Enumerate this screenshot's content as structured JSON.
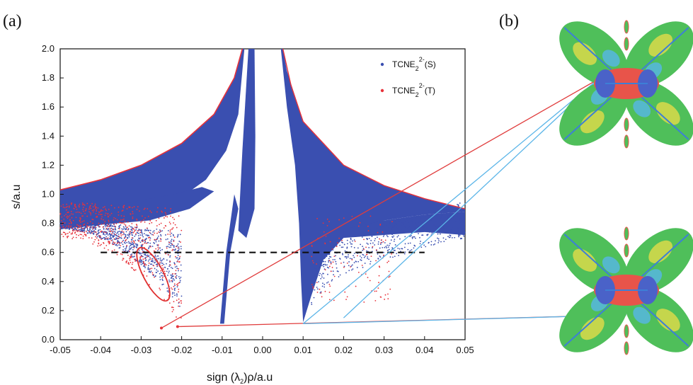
{
  "panels": {
    "a_label": "(a)",
    "b_label": "(b)"
  },
  "chart_data": {
    "type": "scatter",
    "xlabel": "sign (λ2)ρ/a.u",
    "xlabel_main": "sign (λ",
    "xlabel_sub": "2",
    "xlabel_rest": ")ρ/a.u",
    "ylabel": "s/a.u",
    "xlim": [
      -0.05,
      0.05
    ],
    "ylim": [
      0.0,
      2.0
    ],
    "xticks": [
      "-0.05",
      "-0.04",
      "-0.03",
      "-0.02",
      "-0.01",
      "0.00",
      "0.01",
      "0.02",
      "0.03",
      "0.04",
      "0.05"
    ],
    "xtick_values": [
      -0.05,
      -0.04,
      -0.03,
      -0.02,
      -0.01,
      0.0,
      0.01,
      0.02,
      0.03,
      0.04,
      0.05
    ],
    "yticks": [
      "0.0",
      "0.2",
      "0.4",
      "0.6",
      "0.8",
      "1.0",
      "1.2",
      "1.4",
      "1.6",
      "1.8",
      "2.0"
    ],
    "ytick_values": [
      0.0,
      0.2,
      0.4,
      0.6,
      0.8,
      1.0,
      1.2,
      1.4,
      1.6,
      1.8,
      2.0
    ],
    "legend_position": "top-right",
    "series": [
      {
        "name": "TCNE2 2-(S)",
        "legend_main": "TCNE",
        "legend_sub": "2",
        "legend_sup": "2-",
        "legend_suffix": "(S)",
        "color": "#3a4fb0",
        "description_regions": "left wing, central spike, right wing",
        "envelope": {
          "left_wing_upper": [
            [
              -0.05,
              1.03
            ],
            [
              -0.04,
              1.1
            ],
            [
              -0.03,
              1.2
            ],
            [
              -0.02,
              1.35
            ],
            [
              -0.012,
              1.55
            ],
            [
              -0.007,
              1.8
            ],
            [
              -0.005,
              2.0
            ]
          ],
          "right_wing_upper": [
            [
              0.005,
              2.0
            ],
            [
              0.007,
              1.75
            ],
            [
              0.01,
              1.5
            ],
            [
              0.02,
              1.2
            ],
            [
              0.03,
              1.06
            ],
            [
              0.04,
              0.97
            ],
            [
              0.05,
              0.9
            ]
          ],
          "right_wing_lower": [
            [
              0.01,
              0.12
            ],
            [
              0.02,
              0.55
            ],
            [
              0.03,
              0.7
            ],
            [
              0.04,
              0.76
            ],
            [
              0.05,
              0.8
            ]
          ],
          "left_wing_lower": [
            [
              -0.05,
              0.76
            ],
            [
              -0.04,
              0.72
            ],
            [
              -0.03,
              0.6
            ],
            [
              -0.025,
              0.4
            ],
            [
              -0.022,
              0.25
            ]
          ],
          "central_spike": [
            [
              -0.01,
              0.11
            ],
            [
              -0.008,
              0.5
            ],
            [
              -0.005,
              1.2
            ],
            [
              -0.003,
              2.0
            ]
          ]
        }
      },
      {
        "name": "TCNE2 2-(T)",
        "legend_main": "TCNE",
        "legend_sub": "2",
        "legend_sup": "2-",
        "legend_suffix": "(T)",
        "color": "#e8323a",
        "description_regions": "left lower wing, near x=-0.025 and x=-0.021 down to s≈0.08",
        "minima": [
          [
            -0.025,
            0.08
          ],
          [
            -0.021,
            0.09
          ]
        ]
      }
    ],
    "annotations": {
      "dashed_line": {
        "x": [
          -0.04,
          0.04
        ],
        "y": 0.6,
        "color": "#111111"
      },
      "ellipse_center": [
        -0.027,
        0.45
      ],
      "ellipse_color": "#e03030",
      "connectors": [
        {
          "from": [
            -0.025,
            0.08
          ],
          "to_panel": "b-top",
          "color": "#e03c3c"
        },
        {
          "from": [
            -0.021,
            0.09
          ],
          "to_panel": "b-bottom",
          "color": "#e03c3c"
        },
        {
          "from": [
            0.01,
            0.11
          ],
          "to_panel": "b-top",
          "color": "#5bb5e8"
        },
        {
          "from": [
            0.01,
            0.11
          ],
          "to_panel": "b-bottom",
          "color": "#5bb5e8"
        },
        {
          "from": [
            0.02,
            0.15
          ],
          "to_panel": "b-top",
          "color": "#5bb5e8"
        }
      ]
    }
  },
  "molecule_colors": {
    "green": "#4fbf5a",
    "yellow": "#d9d94a",
    "red": "#e8544a",
    "blue": "#4a62c8",
    "cyan": "#56b6e0",
    "bond": "#3d7fd6"
  }
}
